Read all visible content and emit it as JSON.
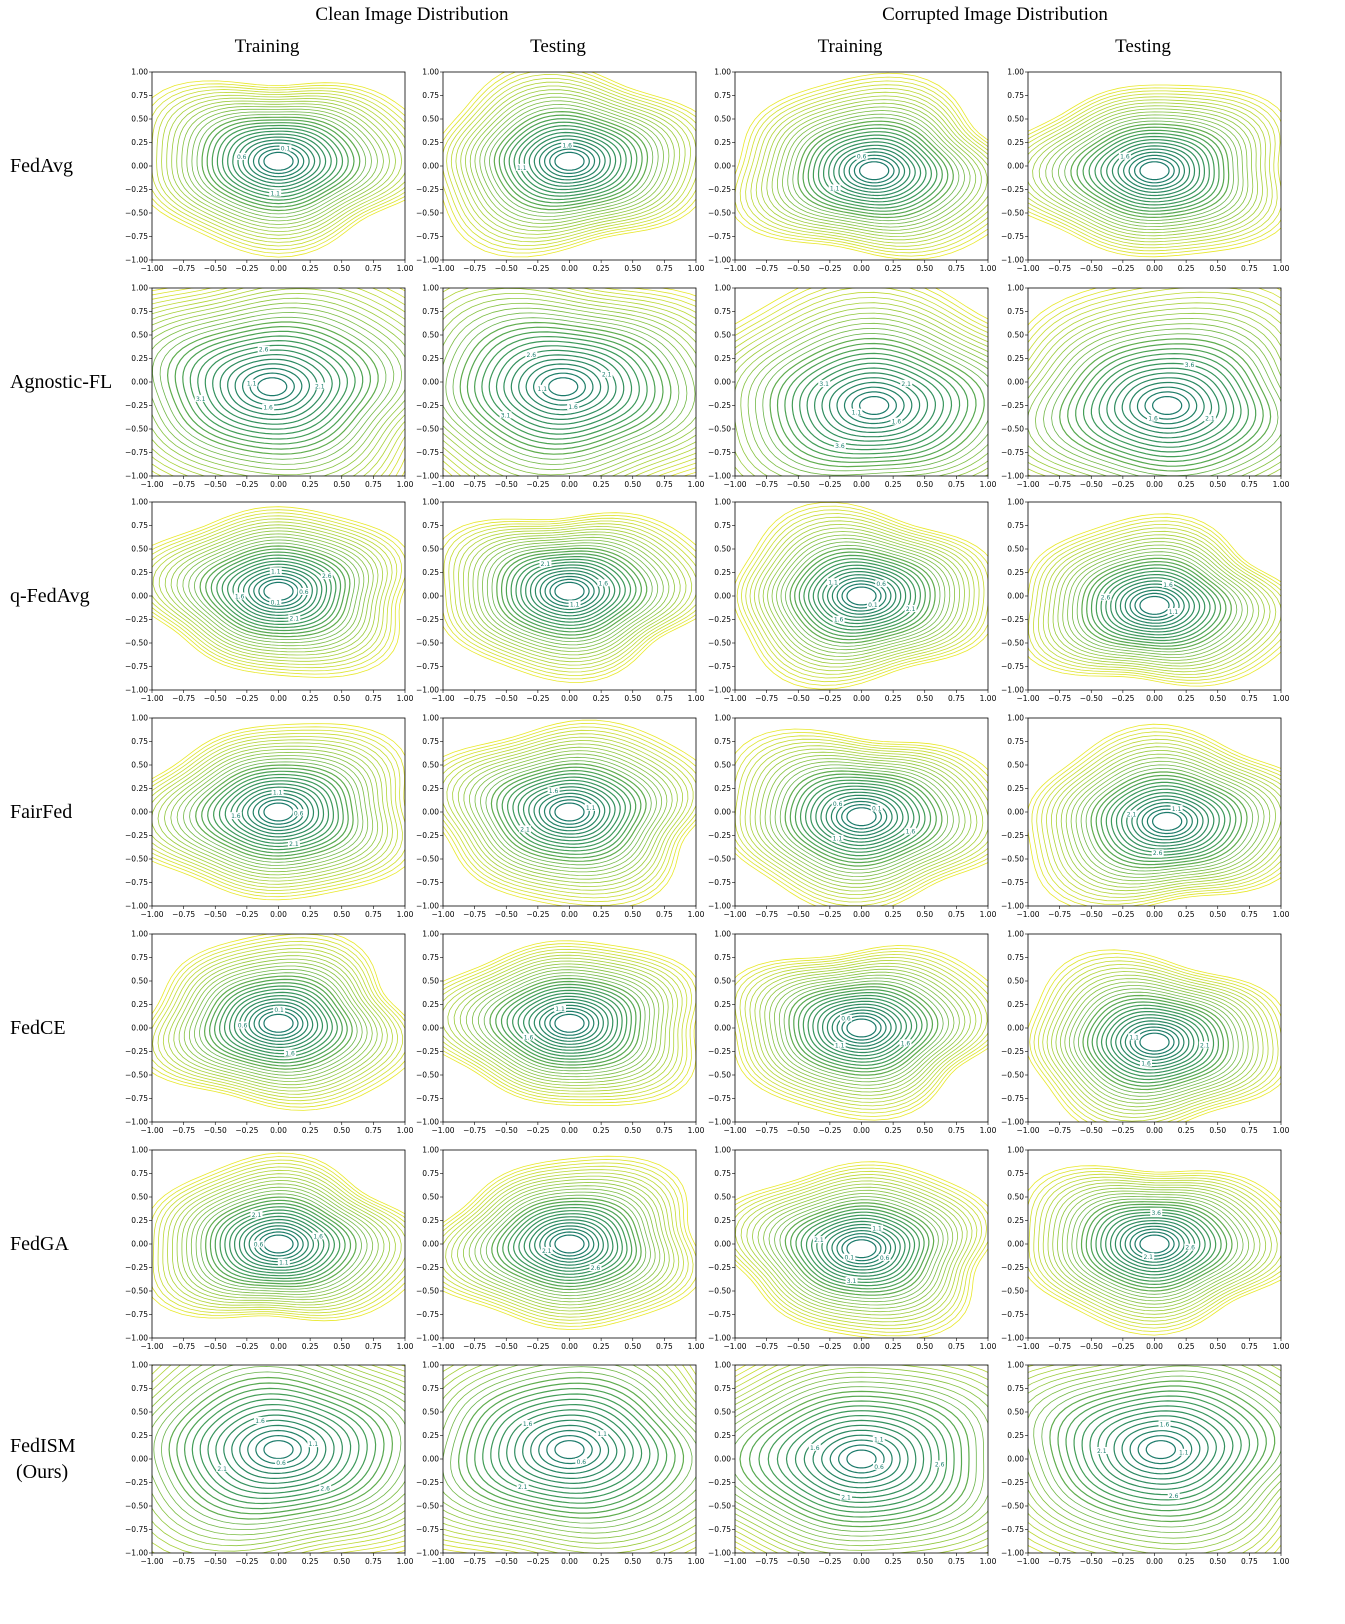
{
  "group_headers": [
    "Clean Image Distribution",
    "Corrupted Image Distribution"
  ],
  "column_headers": [
    "Training",
    "Testing",
    "Training",
    "Testing"
  ],
  "row_labels": [
    "FedAvg",
    "Agnostic-FL",
    "q-FedAvg",
    "FairFed",
    "FedCE",
    "FedGA",
    "FedISM\n(Ours)"
  ],
  "colors": {
    "inner": "#1b7a6a",
    "mid": "#3e9a5a",
    "outer": "#8cc63f",
    "edge": "#e8e82a"
  },
  "chart_data": {
    "type": "contour",
    "xlim": [
      -1.0,
      1.0
    ],
    "ylim": [
      -1.0,
      1.0
    ],
    "xticks": [
      "−1.00",
      "−0.75",
      "−0.50",
      "−0.25",
      "0.00",
      "0.25",
      "0.50",
      "0.75",
      "1.00"
    ],
    "yticks": [
      "1.00",
      "0.75",
      "0.50",
      "0.25",
      "0.00",
      "−0.25",
      "−0.50",
      "−0.75",
      "−1.00"
    ],
    "grid": false,
    "panels": [
      {
        "method": "FedAvg",
        "distribution": "Clean Image Distribution",
        "split": "Training",
        "center": [
          0.0,
          0.05
        ],
        "extent": 0.9,
        "levels": [
          "0.1",
          "0.6",
          "1.1"
        ]
      },
      {
        "method": "FedAvg",
        "distribution": "Clean Image Distribution",
        "split": "Testing",
        "center": [
          0.0,
          0.05
        ],
        "extent": 0.9,
        "levels": [
          "1.6",
          "1.1"
        ]
      },
      {
        "method": "FedAvg",
        "distribution": "Corrupted Image Distribution",
        "split": "Training",
        "center": [
          0.1,
          -0.05
        ],
        "extent": 0.9,
        "levels": [
          "0.6",
          "1.1"
        ]
      },
      {
        "method": "FedAvg",
        "distribution": "Corrupted Image Distribution",
        "split": "Testing",
        "center": [
          0.0,
          -0.05
        ],
        "extent": 0.9,
        "levels": [
          "1.6"
        ]
      },
      {
        "method": "Agnostic-FL",
        "distribution": "Clean Image Distribution",
        "split": "Training",
        "center": [
          -0.05,
          -0.05
        ],
        "extent": 1.3,
        "levels": [
          "1.1",
          "1.6",
          "2.1",
          "2.6",
          "3.1"
        ]
      },
      {
        "method": "Agnostic-FL",
        "distribution": "Clean Image Distribution",
        "split": "Testing",
        "center": [
          -0.05,
          -0.05
        ],
        "extent": 1.3,
        "levels": [
          "1.1",
          "1.6",
          "2.1",
          "2.6",
          "3.1"
        ]
      },
      {
        "method": "Agnostic-FL",
        "distribution": "Corrupted Image Distribution",
        "split": "Training",
        "center": [
          0.1,
          -0.25
        ],
        "extent": 1.3,
        "levels": [
          "1.1",
          "1.6",
          "2.1",
          "3.1",
          "3.6"
        ]
      },
      {
        "method": "Agnostic-FL",
        "distribution": "Corrupted Image Distribution",
        "split": "Testing",
        "center": [
          0.1,
          -0.25
        ],
        "extent": 1.3,
        "levels": [
          "1.6",
          "2.1",
          "3.6"
        ]
      },
      {
        "method": "q-FedAvg",
        "distribution": "Clean Image Distribution",
        "split": "Training",
        "center": [
          0.0,
          0.05
        ],
        "extent": 0.85,
        "levels": [
          "0.1",
          "0.6",
          "1.1",
          "1.6",
          "2.1",
          "2.6"
        ]
      },
      {
        "method": "q-FedAvg",
        "distribution": "Clean Image Distribution",
        "split": "Testing",
        "center": [
          0.0,
          0.05
        ],
        "extent": 0.85,
        "levels": [
          "1.1",
          "1.6",
          "2.1"
        ]
      },
      {
        "method": "q-FedAvg",
        "distribution": "Corrupted Image Distribution",
        "split": "Training",
        "center": [
          0.0,
          0.0
        ],
        "extent": 0.85,
        "levels": [
          "0.1",
          "0.6",
          "1.1",
          "1.6",
          "2.1"
        ]
      },
      {
        "method": "q-FedAvg",
        "distribution": "Corrupted Image Distribution",
        "split": "Testing",
        "center": [
          0.0,
          -0.1
        ],
        "extent": 0.85,
        "levels": [
          "1.1",
          "1.6",
          "2.6"
        ]
      },
      {
        "method": "FairFed",
        "distribution": "Clean Image Distribution",
        "split": "Training",
        "center": [
          0.0,
          0.0
        ],
        "extent": 0.9,
        "levels": [
          "0.6",
          "1.1",
          "1.6",
          "2.1"
        ]
      },
      {
        "method": "FairFed",
        "distribution": "Clean Image Distribution",
        "split": "Testing",
        "center": [
          0.0,
          0.0
        ],
        "extent": 0.9,
        "levels": [
          "1.1",
          "1.6",
          "2.1"
        ]
      },
      {
        "method": "FairFed",
        "distribution": "Corrupted Image Distribution",
        "split": "Training",
        "center": [
          0.0,
          -0.05
        ],
        "extent": 0.9,
        "levels": [
          "0.1",
          "0.6",
          "1.1",
          "1.6"
        ]
      },
      {
        "method": "FairFed",
        "distribution": "Corrupted Image Distribution",
        "split": "Testing",
        "center": [
          0.1,
          -0.1
        ],
        "extent": 0.9,
        "levels": [
          "1.1",
          "2.1",
          "2.6"
        ]
      },
      {
        "method": "FedCE",
        "distribution": "Clean Image Distribution",
        "split": "Training",
        "center": [
          0.0,
          0.05
        ],
        "extent": 0.85,
        "levels": [
          "0.1",
          "0.6",
          "1.6"
        ]
      },
      {
        "method": "FedCE",
        "distribution": "Clean Image Distribution",
        "split": "Testing",
        "center": [
          0.0,
          0.05
        ],
        "extent": 0.85,
        "levels": [
          "1.1",
          "1.6"
        ]
      },
      {
        "method": "FedCE",
        "distribution": "Corrupted Image Distribution",
        "split": "Training",
        "center": [
          0.0,
          0.0
        ],
        "extent": 0.85,
        "levels": [
          "0.6",
          "1.1",
          "1.6"
        ]
      },
      {
        "method": "FedCE",
        "distribution": "Corrupted Image Distribution",
        "split": "Testing",
        "center": [
          0.0,
          -0.15
        ],
        "extent": 0.85,
        "levels": [
          "1.1",
          "1.6",
          "2.1"
        ]
      },
      {
        "method": "FedGA",
        "distribution": "Clean Image Distribution",
        "split": "Training",
        "center": [
          0.0,
          0.0
        ],
        "extent": 0.85,
        "levels": [
          "0.6",
          "1.1",
          "1.6",
          "2.1"
        ]
      },
      {
        "method": "FedGA",
        "distribution": "Clean Image Distribution",
        "split": "Testing",
        "center": [
          0.0,
          0.0
        ],
        "extent": 0.85,
        "levels": [
          "2.1",
          "2.6"
        ]
      },
      {
        "method": "FedGA",
        "distribution": "Corrupted Image Distribution",
        "split": "Training",
        "center": [
          0.0,
          -0.05
        ],
        "extent": 0.85,
        "levels": [
          "0.1",
          "0.6",
          "1.1",
          "2.1",
          "3.1"
        ]
      },
      {
        "method": "FedGA",
        "distribution": "Corrupted Image Distribution",
        "split": "Testing",
        "center": [
          0.0,
          0.0
        ],
        "extent": 0.85,
        "levels": [
          "2.1",
          "2.6",
          "3.6"
        ]
      },
      {
        "method": "FedISM",
        "distribution": "Clean Image Distribution",
        "split": "Training",
        "center": [
          0.0,
          0.1
        ],
        "extent": 1.4,
        "levels": [
          "0.6",
          "1.1",
          "1.6",
          "2.1",
          "2.6"
        ]
      },
      {
        "method": "FedISM",
        "distribution": "Clean Image Distribution",
        "split": "Testing",
        "center": [
          0.0,
          0.1
        ],
        "extent": 1.4,
        "levels": [
          "0.6",
          "1.1",
          "1.6",
          "2.1"
        ]
      },
      {
        "method": "FedISM",
        "distribution": "Corrupted Image Distribution",
        "split": "Training",
        "center": [
          0.0,
          0.0
        ],
        "extent": 1.4,
        "levels": [
          "0.6",
          "1.1",
          "1.6",
          "2.1",
          "2.6"
        ]
      },
      {
        "method": "FedISM",
        "distribution": "Corrupted Image Distribution",
        "split": "Testing",
        "center": [
          0.05,
          0.1
        ],
        "extent": 1.4,
        "levels": [
          "1.1",
          "1.6",
          "2.1",
          "2.6"
        ]
      }
    ]
  }
}
